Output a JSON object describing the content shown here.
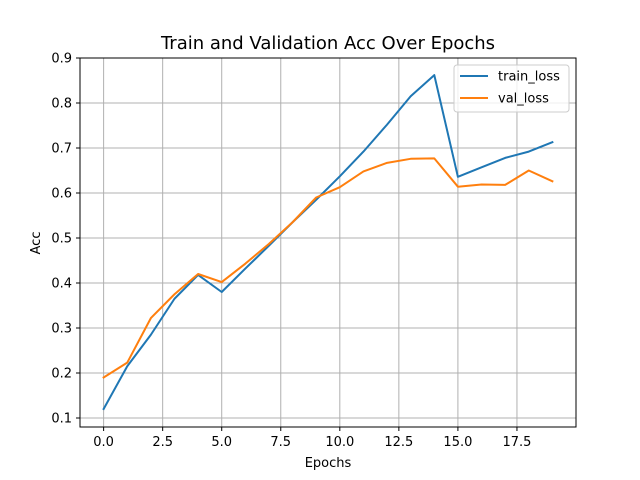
{
  "chart_data": {
    "type": "line",
    "title": "Train and Validation Acc Over Epochs",
    "xlabel": "Epochs",
    "ylabel": "Acc",
    "xlim": [
      -1,
      20
    ],
    "ylim": [
      0.08,
      0.9
    ],
    "xticks": [
      0.0,
      2.5,
      5.0,
      7.5,
      10.0,
      12.5,
      15.0,
      17.5
    ],
    "xtick_labels": [
      "0.0",
      "2.5",
      "5.0",
      "7.5",
      "10.0",
      "12.5",
      "15.0",
      "17.5"
    ],
    "yticks": [
      0.1,
      0.2,
      0.3,
      0.4,
      0.5,
      0.6,
      0.7,
      0.8,
      0.9
    ],
    "ytick_labels": [
      "0.1",
      "0.2",
      "0.3",
      "0.4",
      "0.5",
      "0.6",
      "0.7",
      "0.8",
      "0.9"
    ],
    "grid": true,
    "legend_position": "top-right",
    "x": [
      0,
      1,
      2,
      3,
      4,
      5,
      6,
      7,
      8,
      9,
      10,
      11,
      12,
      13,
      14,
      15,
      16,
      17,
      18,
      19
    ],
    "series": [
      {
        "name": "train_loss",
        "color": "#1f77b4",
        "values": [
          0.12,
          0.215,
          0.285,
          0.365,
          0.418,
          0.38,
          0.432,
          0.483,
          0.535,
          0.585,
          0.637,
          0.692,
          0.752,
          0.815,
          0.862,
          0.636,
          0.657,
          0.678,
          0.692,
          0.713
        ]
      },
      {
        "name": "val_loss",
        "color": "#ff7f0e",
        "values": [
          0.19,
          0.223,
          0.322,
          0.375,
          0.42,
          0.402,
          0.443,
          0.487,
          0.535,
          0.59,
          0.613,
          0.648,
          0.667,
          0.676,
          0.677,
          0.614,
          0.619,
          0.618,
          0.65,
          0.626
        ]
      }
    ]
  }
}
